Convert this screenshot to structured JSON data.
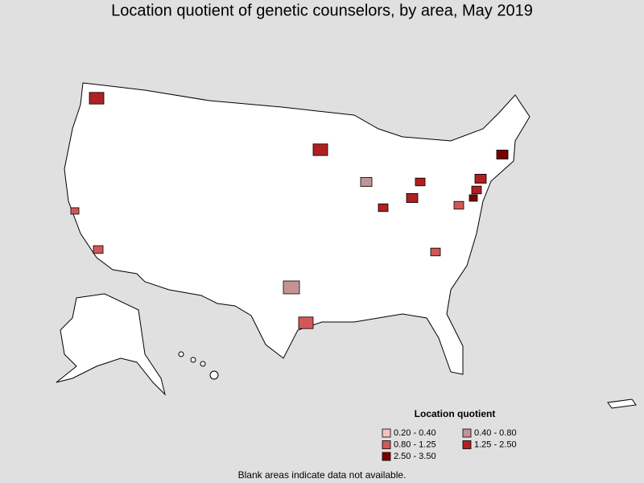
{
  "title": "Location quotient of genetic counselors, by area, May 2019",
  "legend": {
    "title": "Location quotient",
    "items": [
      {
        "label": "0.20 - 0.40",
        "color": "#f4c2c2"
      },
      {
        "label": "0.40 - 0.80",
        "color": "#c49494"
      },
      {
        "label": "0.80 - 1.25",
        "color": "#d05858"
      },
      {
        "label": "1.25 - 2.50",
        "color": "#b02020"
      },
      {
        "label": "2.50 - 3.50",
        "color": "#780000"
      }
    ]
  },
  "footnote": "Blank areas indicate data not available."
}
